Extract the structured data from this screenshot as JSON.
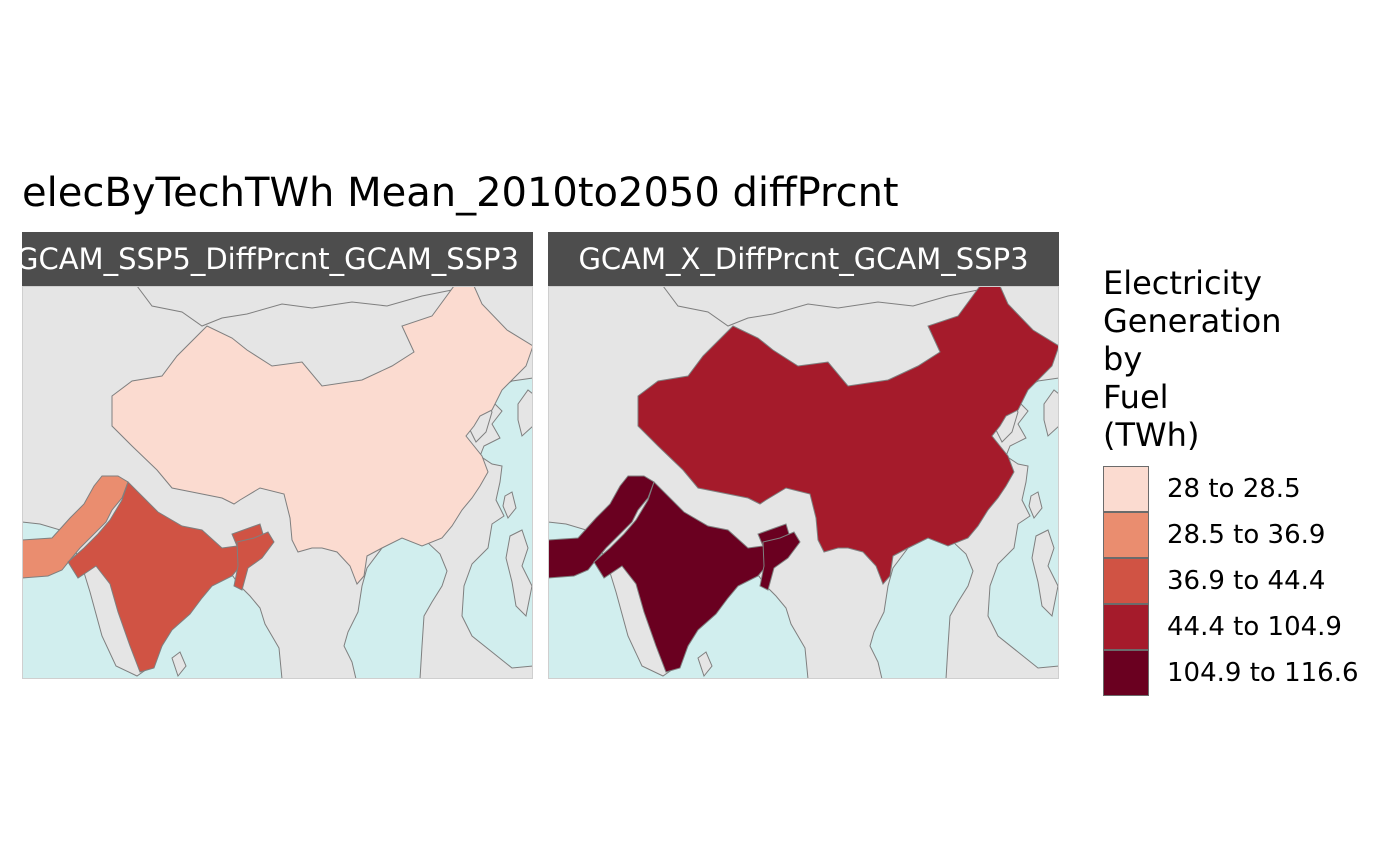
{
  "title": "elecByTechTWh Mean_2010to2050 diffPrcnt",
  "panels": [
    {
      "strip_label": "GCAM_SSP5_DiffPrcnt_GCAM_SSP3",
      "fills": {
        "china": "#fbdbd0",
        "pakistan": "#ea8d6f",
        "india": "#d05344",
        "northeast": "#d05344"
      }
    },
    {
      "strip_label": "GCAM_X_DiffPrcnt_GCAM_SSP3",
      "fills": {
        "china": "#a51b2b",
        "pakistan": "#6a0020",
        "india": "#6a0020",
        "northeast": "#6a0020"
      }
    }
  ],
  "legend": {
    "title_lines": [
      "Electricity",
      "Generation",
      "by",
      "Fuel",
      "(TWh)"
    ],
    "items": [
      {
        "label": "28 to 28.5",
        "color": "#fbdbd0"
      },
      {
        "label": "28.5 to 36.9",
        "color": "#ea8d6f"
      },
      {
        "label": "36.9 to 44.4",
        "color": "#d05344"
      },
      {
        "label": "44.4 to 104.9",
        "color": "#a51b2b"
      },
      {
        "label": "104.9 to 116.6",
        "color": "#6a0020"
      }
    ]
  },
  "colors": {
    "land": "#e5e5e5",
    "ocean": "#d1eeee",
    "border": "#7f7f7f",
    "strip": "#4d4d4d"
  }
}
